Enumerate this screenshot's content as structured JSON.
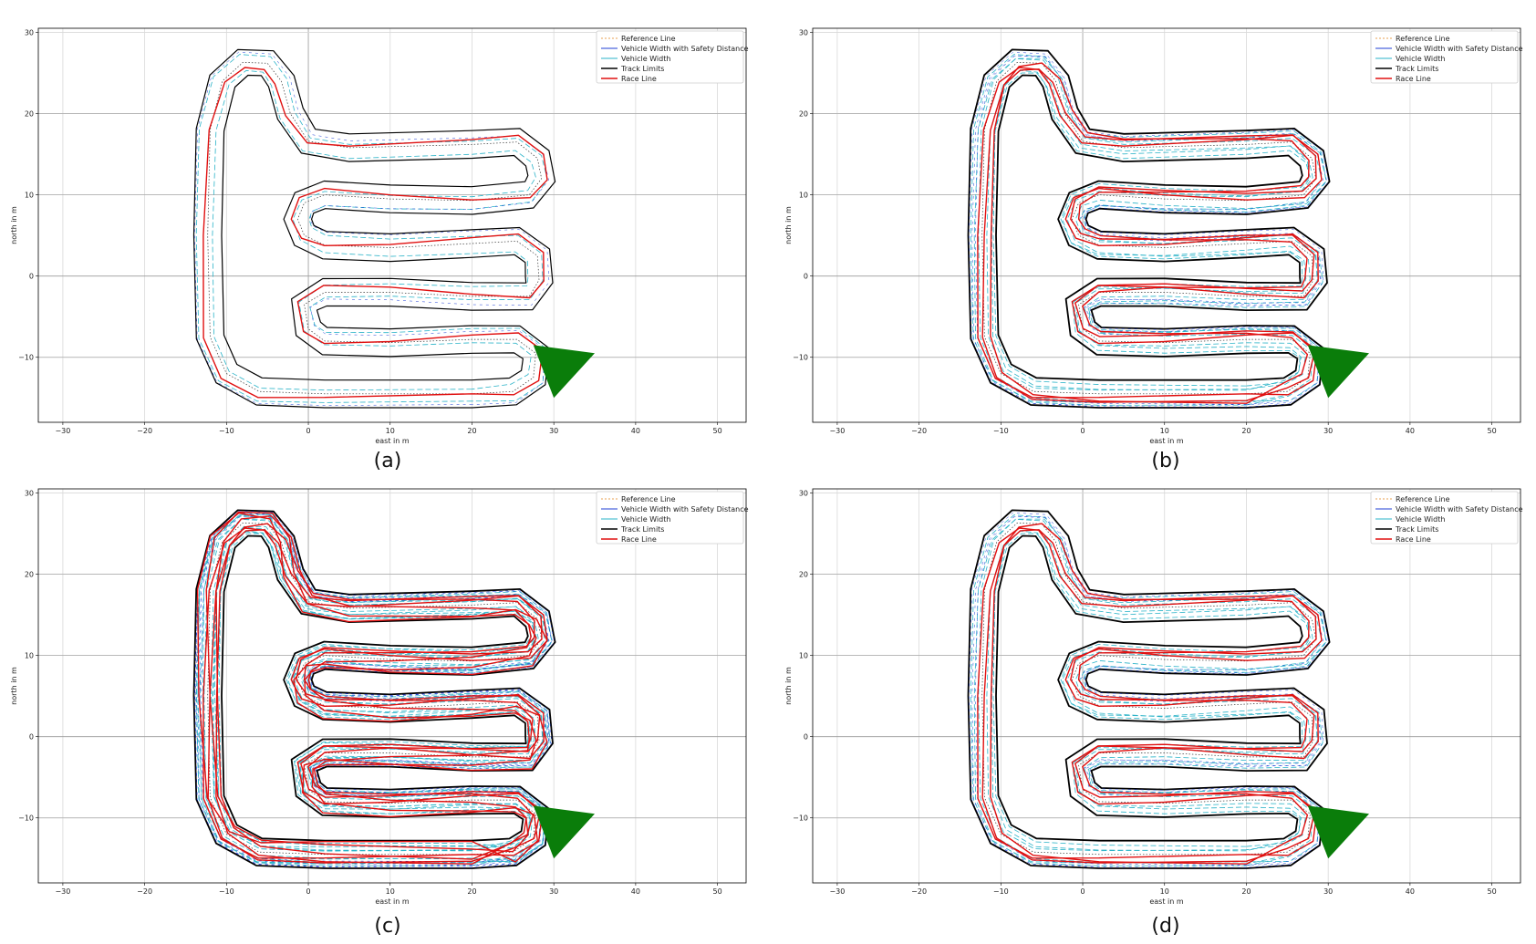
{
  "figure": {
    "panels": [
      {
        "id": "a",
        "caption": "(a)"
      },
      {
        "id": "b",
        "caption": "(b)"
      },
      {
        "id": "c",
        "caption": "(c)"
      },
      {
        "id": "d",
        "caption": "(d)"
      }
    ]
  },
  "chart_data": [
    {
      "panel": "(a)",
      "type": "line",
      "title": "",
      "xlabel": "east in m",
      "ylabel": "north in m",
      "xlim": [
        -33,
        53.5
      ],
      "ylim": [
        -18,
        30.5
      ],
      "xticks": [
        -30,
        -20,
        -10,
        0,
        10,
        20,
        30,
        40,
        50
      ],
      "yticks": [
        -10,
        0,
        10,
        20,
        30
      ],
      "grid": true,
      "legend_position": "top-right",
      "legend": [
        "Reference Line",
        "Vehicle Width with Safety Distance",
        "Vehicle Width",
        "Track Limits",
        "Race Line"
      ],
      "race_line_variants": 1,
      "start_marker": {
        "shape": "triangle",
        "color": "#0a7d0a",
        "vertices": [
          [
            27.5,
            -8.5
          ],
          [
            35,
            -9.5
          ],
          [
            30,
            -15
          ]
        ]
      },
      "track_centerline": [
        [
          20,
          -14.5
        ],
        [
          2,
          -14.5
        ],
        [
          -6,
          -14.2
        ],
        [
          -10,
          -12
        ],
        [
          -12,
          -7.5
        ],
        [
          -12.3,
          5
        ],
        [
          -12,
          18
        ],
        [
          -10.5,
          24
        ],
        [
          -8,
          26.3
        ],
        [
          -5,
          26.2
        ],
        [
          -3.3,
          24
        ],
        [
          -2.2,
          20
        ],
        [
          0,
          16.6
        ],
        [
          5,
          15.8
        ],
        [
          20,
          16.2
        ],
        [
          25.5,
          16.5
        ],
        [
          28,
          14.5
        ],
        [
          28.5,
          12
        ],
        [
          27,
          10
        ],
        [
          20,
          9.3
        ],
        [
          10,
          9.5
        ],
        [
          2,
          10
        ],
        [
          -0.5,
          9
        ],
        [
          -1.3,
          7
        ],
        [
          -0.5,
          5
        ],
        [
          2,
          3.8
        ],
        [
          10,
          3.5
        ],
        [
          20,
          4
        ],
        [
          25.5,
          4.3
        ],
        [
          28,
          2.5
        ],
        [
          28.2,
          -0.5
        ],
        [
          27,
          -2.5
        ],
        [
          20,
          -2.5
        ],
        [
          10,
          -2
        ],
        [
          2,
          -2
        ],
        [
          -0.5,
          -3.5
        ],
        [
          0,
          -6.5
        ],
        [
          2,
          -8
        ],
        [
          10,
          -8.2
        ],
        [
          20,
          -7.8
        ],
        [
          25.5,
          -7.8
        ],
        [
          27.8,
          -9.5
        ],
        [
          27.5,
          -12.5
        ],
        [
          25,
          -14.2
        ],
        [
          20,
          -14.5
        ]
      ]
    },
    {
      "panel": "(b)",
      "type": "line",
      "title": "",
      "xlabel": "east in m",
      "ylabel": "north in m",
      "xlim": [
        -33,
        53.5
      ],
      "ylim": [
        -18,
        30.5
      ],
      "xticks": [
        -30,
        -20,
        -10,
        0,
        10,
        20,
        30,
        40,
        50
      ],
      "yticks": [
        -10,
        0,
        10,
        20,
        30
      ],
      "grid": true,
      "legend_position": "top-right",
      "legend": [
        "Reference Line",
        "Vehicle Width with Safety Distance",
        "Vehicle Width",
        "Track Limits",
        "Race Line"
      ],
      "race_line_variants": 3,
      "start_marker": {
        "shape": "triangle",
        "color": "#0a7d0a",
        "vertices": [
          [
            27.5,
            -8.5
          ],
          [
            35,
            -9.5
          ],
          [
            30,
            -15
          ]
        ]
      },
      "track_centerline": "same as (a)"
    },
    {
      "panel": "(c)",
      "type": "line",
      "title": "",
      "xlabel": "east in m",
      "ylabel": "north in m",
      "xlim": [
        -33,
        53.5
      ],
      "ylim": [
        -18,
        30.5
      ],
      "xticks": [
        -30,
        -20,
        -10,
        0,
        10,
        20,
        30,
        40,
        50
      ],
      "yticks": [
        -10,
        0,
        10,
        20,
        30
      ],
      "grid": true,
      "legend_position": "top-right",
      "legend": [
        "Reference Line",
        "Vehicle Width with Safety Distance",
        "Vehicle Width",
        "Track Limits",
        "Race Line"
      ],
      "race_line_variants": 6,
      "start_marker": {
        "shape": "triangle",
        "color": "#0a7d0a",
        "vertices": [
          [
            27.5,
            -8.5
          ],
          [
            35,
            -9.5
          ],
          [
            30,
            -15
          ]
        ]
      },
      "track_centerline": "same as (a)"
    },
    {
      "panel": "(d)",
      "type": "line",
      "title": "",
      "xlabel": "east in m",
      "ylabel": "north in m",
      "xlim": [
        -33,
        53.5
      ],
      "ylim": [
        -18,
        30.5
      ],
      "xticks": [
        -30,
        -20,
        -10,
        0,
        10,
        20,
        30,
        40,
        50
      ],
      "yticks": [
        -10,
        0,
        10,
        20,
        30
      ],
      "grid": true,
      "legend_position": "top-right",
      "legend": [
        "Reference Line",
        "Vehicle Width with Safety Distance",
        "Vehicle Width",
        "Track Limits",
        "Race Line"
      ],
      "race_line_variants": 3,
      "start_marker": {
        "shape": "triangle",
        "color": "#0a7d0a",
        "vertices": [
          [
            27.5,
            -8.5
          ],
          [
            35,
            -9.5
          ],
          [
            30,
            -15
          ]
        ]
      },
      "track_centerline": "same as (a)"
    }
  ],
  "colors": {
    "reference_line": "#e8a050",
    "safety_width": "#1f3fd6",
    "vehicle_width": "#2ab3c8",
    "track_limits": "#000000",
    "race_line": "#e01010",
    "start_marker": "#0a7d0a",
    "grid": "#d9d9d9",
    "axis_zero_line": "#9a9a9a"
  }
}
